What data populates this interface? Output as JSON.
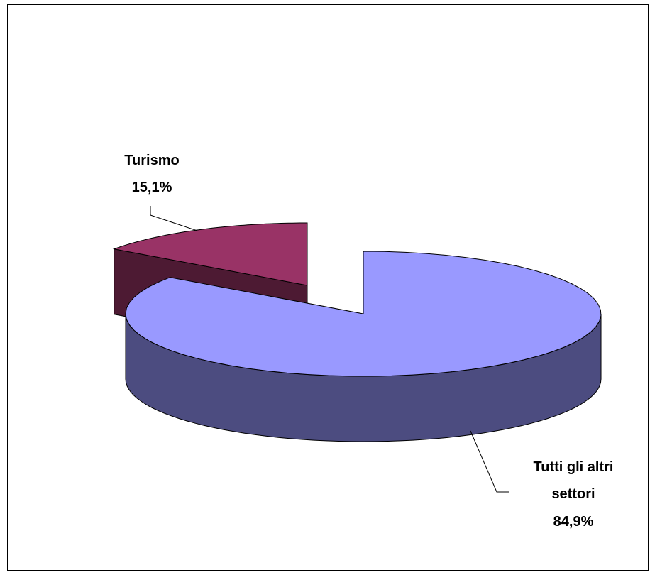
{
  "chart_data": {
    "type": "pie",
    "style": "3d-exploded",
    "title": "",
    "slices": [
      {
        "label_lines": [
          "Turismo"
        ],
        "value_label": "15,1%",
        "value": 15.1,
        "color": "#993366",
        "side_color": "#4d1a33"
      },
      {
        "label_lines": [
          "Tutti gli altri",
          "settori"
        ],
        "value_label": "84,9%",
        "value": 84.9,
        "color": "#9999ff",
        "side_color": "#4c4c80"
      }
    ],
    "legend": "none"
  }
}
